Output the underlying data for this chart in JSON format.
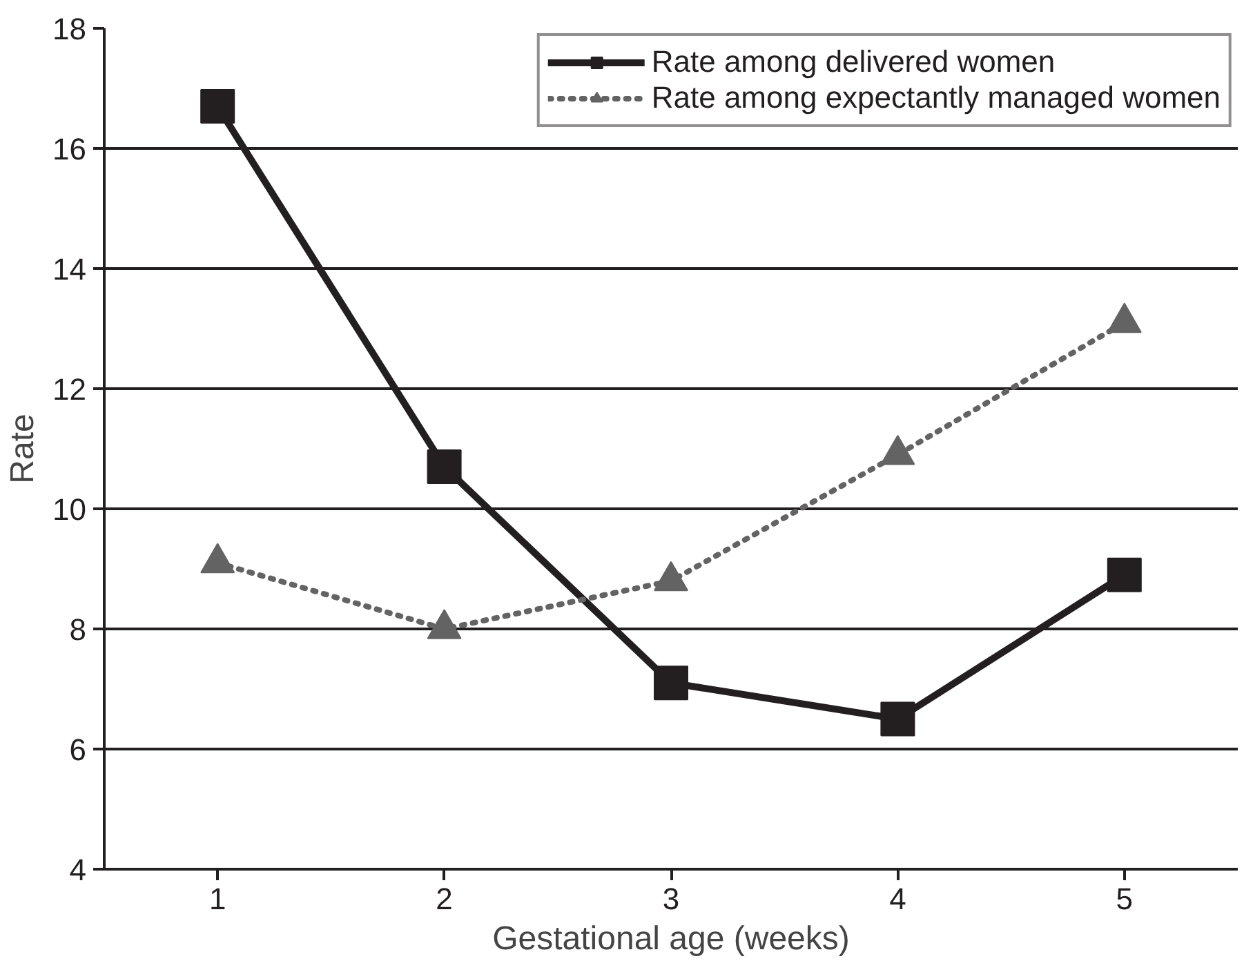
{
  "chart_data": {
    "type": "line",
    "xlabel": "Gestational age (weeks)",
    "ylabel": "Rate",
    "categories": [
      "1",
      "2",
      "3",
      "4",
      "5"
    ],
    "ylim": [
      4,
      18
    ],
    "yticks": [
      4,
      6,
      8,
      10,
      12,
      14,
      16,
      18
    ],
    "grid": "y",
    "legend": "top right",
    "series": [
      {
        "name": "Rate among delivered women",
        "color": "#231f20",
        "marker": "square",
        "line_style": "solid",
        "values": [
          16.7,
          10.7,
          7.1,
          6.5,
          8.9
        ]
      },
      {
        "name": "Rate among expectantly managed women",
        "color": "#636363",
        "marker": "triangle",
        "line_style": "dotted",
        "values": [
          9.1,
          8.0,
          8.8,
          10.9,
          13.1
        ]
      }
    ]
  }
}
